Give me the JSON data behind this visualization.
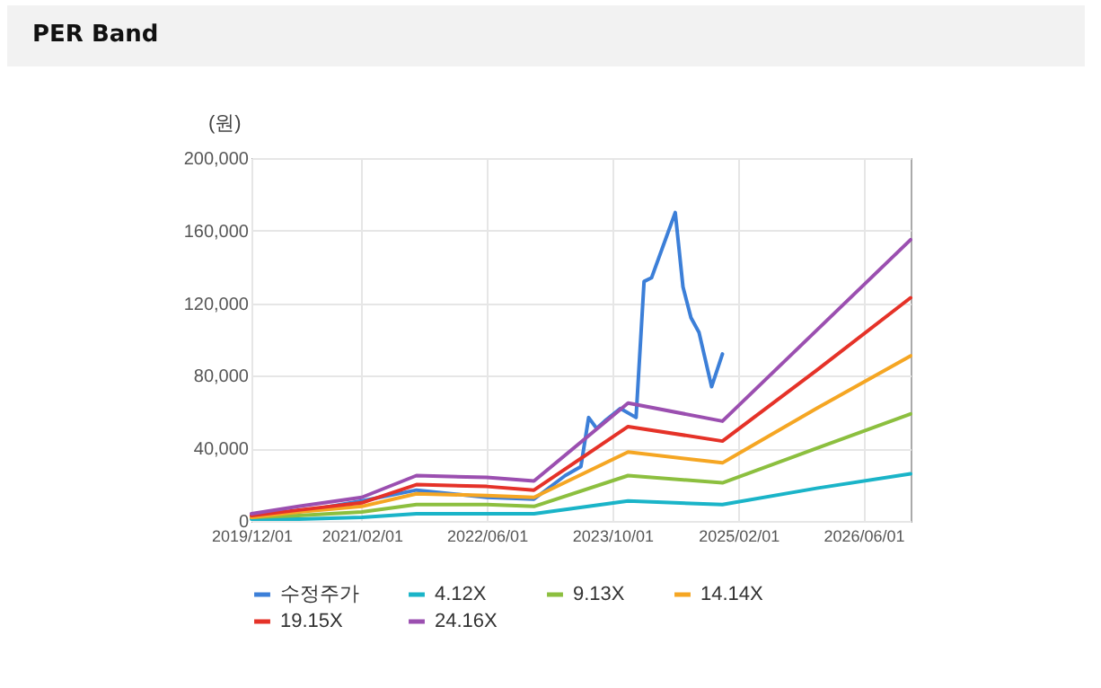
{
  "chart_data": {
    "type": "line",
    "title": "PER Band",
    "ylabel": "(원)",
    "xlim": [
      "2019-12-01",
      "2026-12-01"
    ],
    "xticks": [
      {
        "value": "2019-12-01",
        "label": "2019/12/01"
      },
      {
        "value": "2021-02-01",
        "label": "2021/02/01"
      },
      {
        "value": "2022-06-01",
        "label": "2022/06/01"
      },
      {
        "value": "2023-10-01",
        "label": "2023/10/01"
      },
      {
        "value": "2025-02-01",
        "label": "2025/02/01"
      },
      {
        "value": "2026-06-01",
        "label": "2026/06/01"
      }
    ],
    "ylim": [
      0,
      200000
    ],
    "yticks": [
      {
        "value": 0,
        "label": "0"
      },
      {
        "value": 40000,
        "label": "40,000"
      },
      {
        "value": 80000,
        "label": "80,000"
      },
      {
        "value": 120000,
        "label": "120,000"
      },
      {
        "value": 160000,
        "label": "160,000"
      },
      {
        "value": 200000,
        "label": "200,000"
      }
    ],
    "grid": true,
    "legend": "bottom",
    "marker": "none",
    "line_style": "solid",
    "series": [
      {
        "name": "수정주가",
        "color": "#3c7fd8",
        "x": [
          "2019-12",
          "2020-06",
          "2021-02",
          "2021-09",
          "2022-06",
          "2022-12",
          "2023-04",
          "2023-06",
          "2023-07",
          "2023-08",
          "2023-09",
          "2023-11",
          "2024-01",
          "2024-02",
          "2024-03",
          "2024-06",
          "2024-07",
          "2024-08",
          "2024-09",
          "2024-10-20",
          "2024-12"
        ],
        "values": [
          3000,
          5000,
          11000,
          17000,
          13000,
          12000,
          25000,
          30000,
          57000,
          51000,
          55000,
          62000,
          57000,
          132000,
          134000,
          170000,
          129000,
          112000,
          104000,
          74000,
          92000
        ]
      },
      {
        "name": "4.12X",
        "color": "#1ab4c8",
        "x": [
          "2019-12",
          "2020-06",
          "2021-02",
          "2021-09",
          "2022-06",
          "2022-12",
          "2023-12",
          "2024-12",
          "2025-12",
          "2026-12"
        ],
        "values": [
          1000,
          1000,
          2000,
          4000,
          4000,
          4000,
          11000,
          9000,
          18000,
          26000
        ]
      },
      {
        "name": "9.13X",
        "color": "#8cbf3f",
        "x": [
          "2019-12",
          "2020-06",
          "2021-02",
          "2021-09",
          "2022-06",
          "2022-12",
          "2023-12",
          "2024-12",
          "2025-12",
          "2026-12"
        ],
        "values": [
          2000,
          3000,
          5000,
          9000,
          9000,
          8000,
          25000,
          21000,
          40000,
          59000
        ]
      },
      {
        "name": "14.14X",
        "color": "#f5a623",
        "x": [
          "2019-12",
          "2020-06",
          "2021-02",
          "2021-09",
          "2022-06",
          "2022-12",
          "2023-12",
          "2024-12",
          "2025-12",
          "2026-12"
        ],
        "values": [
          2000,
          5000,
          8000,
          15000,
          14000,
          13000,
          38000,
          32000,
          62000,
          91000
        ]
      },
      {
        "name": "19.15X",
        "color": "#e53228",
        "x": [
          "2019-12",
          "2020-06",
          "2021-02",
          "2021-09",
          "2022-06",
          "2022-12",
          "2023-12",
          "2024-12",
          "2025-12",
          "2026-12"
        ],
        "values": [
          3000,
          6000,
          10000,
          20000,
          19000,
          17000,
          52000,
          44000,
          83000,
          123000
        ]
      },
      {
        "name": "24.16X",
        "color": "#9b4fb0",
        "x": [
          "2019-12",
          "2020-06",
          "2021-02",
          "2021-09",
          "2022-06",
          "2022-12",
          "2023-12",
          "2024-12",
          "2025-12",
          "2026-12"
        ],
        "values": [
          4000,
          8000,
          13000,
          25000,
          24000,
          22000,
          65000,
          55000,
          105000,
          155000
        ]
      }
    ]
  }
}
